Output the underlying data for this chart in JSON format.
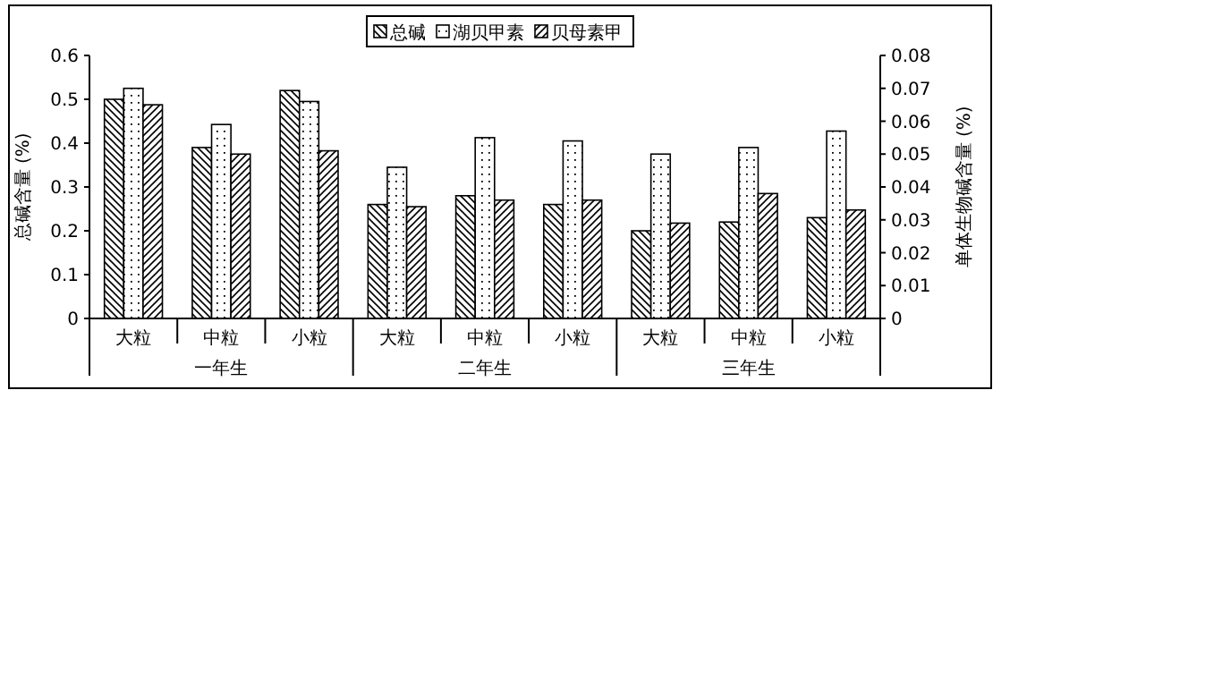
{
  "chart_data": {
    "type": "bar",
    "ylabel": "总碱含量 (%)",
    "y2label": "单体生物碱含量 (%)",
    "categories": [
      "大粒",
      "中粒",
      "小粒",
      "大粒",
      "中粒",
      "小粒",
      "大粒",
      "中粒",
      "小粒"
    ],
    "series": [
      {
        "name": "总碱",
        "color": "#000000",
        "values": [
          0.5,
          0.39,
          0.52,
          0.26,
          0.28,
          0.26,
          0.2,
          0.22,
          0.23
        ]
      },
      {
        "name": "湖贝甲素",
        "color": "#000000",
        "axis": "y2",
        "values": [
          0.07,
          0.059,
          0.066,
          0.046,
          0.055,
          0.054,
          0.05,
          0.052,
          0.057
        ]
      },
      {
        "name": "贝母素甲",
        "color": "#000000",
        "axis": "y2",
        "values": [
          0.065,
          0.05,
          0.051,
          0.034,
          0.036,
          0.036,
          0.029,
          0.038,
          0.033
        ]
      }
    ],
    "ylim": [
      0,
      0.6
    ],
    "yticks": [
      0,
      0.1,
      0.2,
      0.3,
      0.4,
      0.5,
      0.6
    ],
    "y2lim": [
      0,
      0.08
    ],
    "y2ticks": [
      0,
      0.01,
      0.02,
      0.03,
      0.04,
      0.05,
      0.06,
      0.07,
      0.08
    ],
    "annotations": [
      "一年生",
      "二年生",
      "三年生"
    ],
    "legend": "top"
  }
}
